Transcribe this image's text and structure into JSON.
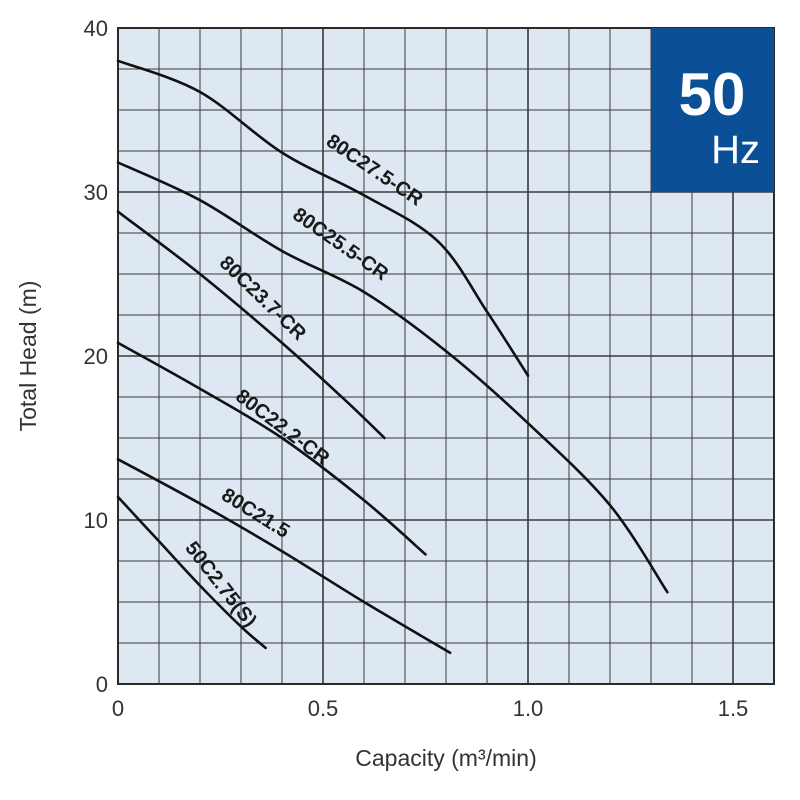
{
  "chart_data": {
    "type": "line",
    "xlabel": "Capacity (m³/min)",
    "ylabel": "Total Head (m)",
    "xlim": [
      0,
      1.6
    ],
    "ylim": [
      0,
      40
    ],
    "x_ticks": [
      "0",
      "0.5",
      "1.0",
      "1.5"
    ],
    "x_tick_values": [
      0,
      0.5,
      1.0,
      1.5
    ],
    "y_ticks": [
      "0",
      "10",
      "20",
      "30",
      "40"
    ],
    "y_tick_values": [
      0,
      10,
      20,
      30,
      40
    ],
    "grid": true,
    "minor_grid_step_x": 0.1,
    "minor_grid_step_y": 2.5,
    "plot_bg_color": "#dde8f3",
    "grid_color": "#3a3a3a",
    "line_color": "#111111",
    "badge": {
      "value": "50",
      "unit": "Hz",
      "color": "#0b4f96",
      "position": "top-right"
    },
    "series": [
      {
        "name": "80C27.5-CR",
        "points": [
          [
            0,
            38.0
          ],
          [
            0.2,
            36.1
          ],
          [
            0.4,
            32.4
          ],
          [
            0.6,
            29.8
          ],
          [
            0.78,
            27.0
          ],
          [
            0.9,
            22.7
          ],
          [
            1.0,
            18.8
          ]
        ]
      },
      {
        "name": "80C25.5-CR",
        "points": [
          [
            0,
            31.8
          ],
          [
            0.2,
            29.5
          ],
          [
            0.4,
            26.4
          ],
          [
            0.6,
            23.9
          ],
          [
            0.8,
            20.3
          ],
          [
            1.0,
            15.9
          ],
          [
            1.2,
            10.9
          ],
          [
            1.34,
            5.6
          ]
        ]
      },
      {
        "name": "80C23.7-CR",
        "points": [
          [
            0,
            28.8
          ],
          [
            0.2,
            25.0
          ],
          [
            0.4,
            20.8
          ],
          [
            0.55,
            17.4
          ],
          [
            0.65,
            15.0
          ]
        ]
      },
      {
        "name": "80C22.2-CR",
        "points": [
          [
            0,
            20.8
          ],
          [
            0.2,
            18.0
          ],
          [
            0.4,
            15.0
          ],
          [
            0.6,
            11.2
          ],
          [
            0.75,
            7.9
          ]
        ]
      },
      {
        "name": "80C21.5",
        "points": [
          [
            0,
            13.7
          ],
          [
            0.2,
            11.0
          ],
          [
            0.4,
            8.1
          ],
          [
            0.6,
            5.0
          ],
          [
            0.81,
            1.9
          ]
        ]
      },
      {
        "name": "50C2.75(S)",
        "points": [
          [
            0,
            11.4
          ],
          [
            0.1,
            8.7
          ],
          [
            0.2,
            6.0
          ],
          [
            0.3,
            3.5
          ],
          [
            0.36,
            2.2
          ]
        ]
      }
    ]
  }
}
